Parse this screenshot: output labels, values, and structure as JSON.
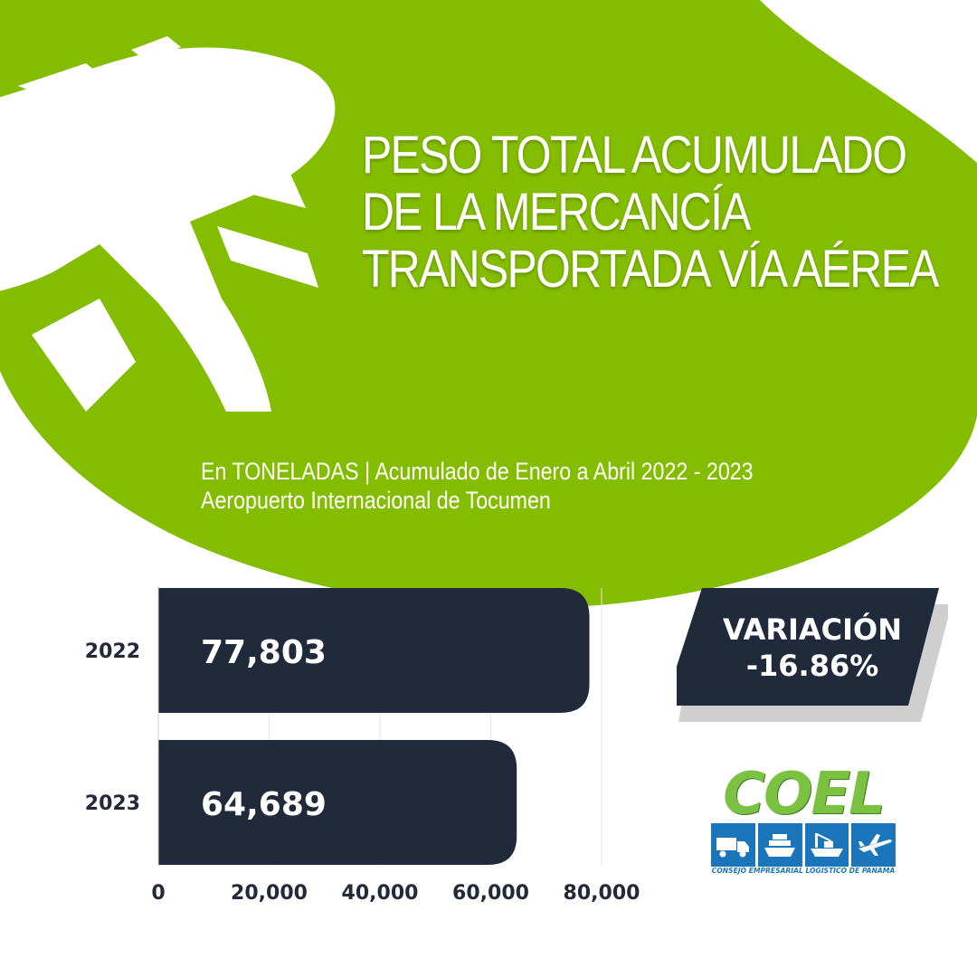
{
  "title_lines": [
    "PESO TOTAL ACUMULADO",
    "DE LA MERCANCÍA",
    "TRANSPORTADA VÍA AÉREA"
  ],
  "subtitle_lines": [
    "En TONELADAS | Acumulado de Enero a Abril 2022 - 2023",
    "Aeropuerto Internacional de Tocumen"
  ],
  "chart_data": {
    "type": "bar",
    "orientation": "horizontal",
    "title": "",
    "xlabel": "",
    "ylabel": "",
    "categories": [
      "2022",
      "2023"
    ],
    "values": [
      77803,
      64689
    ],
    "value_labels": [
      "77,803",
      "64,689"
    ],
    "xlim": [
      0,
      80000
    ],
    "ticks": [
      0,
      20000,
      40000,
      60000,
      80000
    ],
    "tick_labels": [
      "0",
      "20,000",
      "40,000",
      "60,000",
      "80,000"
    ],
    "grid": true,
    "legend": "none"
  },
  "variation": {
    "label": "VARIACIÓN",
    "value": "-16.86%"
  },
  "logo": {
    "word": "COEL",
    "caption": "CONSEJO EMPRESARIAL LOGÍSTICO DE PANAMÁ",
    "icons": [
      "truck-icon",
      "ship-icon",
      "cargo-ship-icon",
      "airplane-icon"
    ]
  },
  "colors": {
    "green": "#84bd00",
    "navy": "#212a3b",
    "white": "#ffffff",
    "logo_green": "#7cc242",
    "logo_blue": "#1b75bb",
    "gray": "#cccccc"
  }
}
